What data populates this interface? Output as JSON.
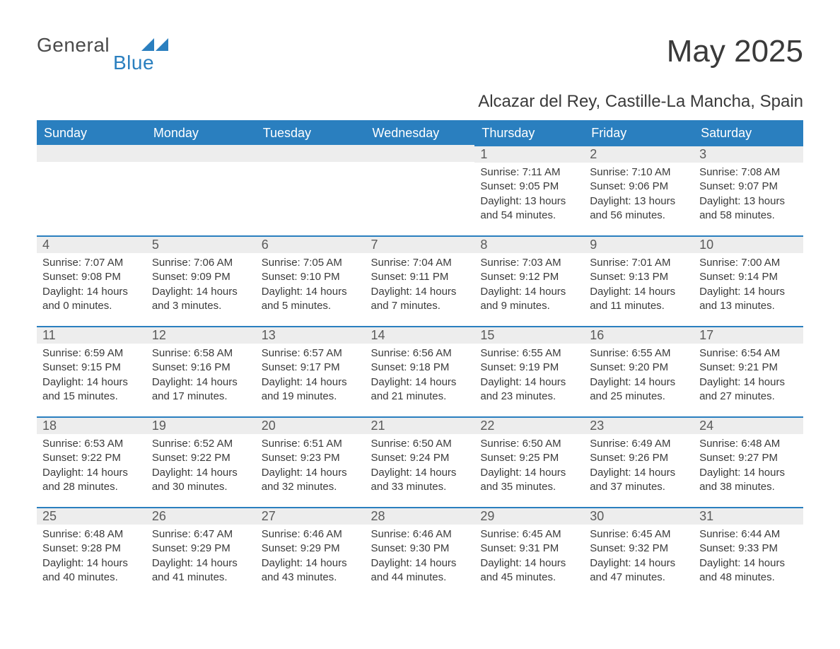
{
  "logo": {
    "text1": "General",
    "text2": "Blue",
    "tri_color": "#2a7fbf"
  },
  "title": "May 2025",
  "subtitle": "Alcazar del Rey, Castille-La Mancha, Spain",
  "colors": {
    "header_bg": "#2a7fbf",
    "header_fg": "#ffffff",
    "daynum_bg": "#ededed",
    "daynum_border": "#2a7fbf",
    "text": "#3a3a3a",
    "page_bg": "#ffffff"
  },
  "weekdays": [
    "Sunday",
    "Monday",
    "Tuesday",
    "Wednesday",
    "Thursday",
    "Friday",
    "Saturday"
  ],
  "weeks": [
    [
      null,
      null,
      null,
      null,
      {
        "n": "1",
        "sr": "7:11 AM",
        "ss": "9:05 PM",
        "dh": "13",
        "dm": "54"
      },
      {
        "n": "2",
        "sr": "7:10 AM",
        "ss": "9:06 PM",
        "dh": "13",
        "dm": "56"
      },
      {
        "n": "3",
        "sr": "7:08 AM",
        "ss": "9:07 PM",
        "dh": "13",
        "dm": "58"
      }
    ],
    [
      {
        "n": "4",
        "sr": "7:07 AM",
        "ss": "9:08 PM",
        "dh": "14",
        "dm": "0"
      },
      {
        "n": "5",
        "sr": "7:06 AM",
        "ss": "9:09 PM",
        "dh": "14",
        "dm": "3"
      },
      {
        "n": "6",
        "sr": "7:05 AM",
        "ss": "9:10 PM",
        "dh": "14",
        "dm": "5"
      },
      {
        "n": "7",
        "sr": "7:04 AM",
        "ss": "9:11 PM",
        "dh": "14",
        "dm": "7"
      },
      {
        "n": "8",
        "sr": "7:03 AM",
        "ss": "9:12 PM",
        "dh": "14",
        "dm": "9"
      },
      {
        "n": "9",
        "sr": "7:01 AM",
        "ss": "9:13 PM",
        "dh": "14",
        "dm": "11"
      },
      {
        "n": "10",
        "sr": "7:00 AM",
        "ss": "9:14 PM",
        "dh": "14",
        "dm": "13"
      }
    ],
    [
      {
        "n": "11",
        "sr": "6:59 AM",
        "ss": "9:15 PM",
        "dh": "14",
        "dm": "15"
      },
      {
        "n": "12",
        "sr": "6:58 AM",
        "ss": "9:16 PM",
        "dh": "14",
        "dm": "17"
      },
      {
        "n": "13",
        "sr": "6:57 AM",
        "ss": "9:17 PM",
        "dh": "14",
        "dm": "19"
      },
      {
        "n": "14",
        "sr": "6:56 AM",
        "ss": "9:18 PM",
        "dh": "14",
        "dm": "21"
      },
      {
        "n": "15",
        "sr": "6:55 AM",
        "ss": "9:19 PM",
        "dh": "14",
        "dm": "23"
      },
      {
        "n": "16",
        "sr": "6:55 AM",
        "ss": "9:20 PM",
        "dh": "14",
        "dm": "25"
      },
      {
        "n": "17",
        "sr": "6:54 AM",
        "ss": "9:21 PM",
        "dh": "14",
        "dm": "27"
      }
    ],
    [
      {
        "n": "18",
        "sr": "6:53 AM",
        "ss": "9:22 PM",
        "dh": "14",
        "dm": "28"
      },
      {
        "n": "19",
        "sr": "6:52 AM",
        "ss": "9:22 PM",
        "dh": "14",
        "dm": "30"
      },
      {
        "n": "20",
        "sr": "6:51 AM",
        "ss": "9:23 PM",
        "dh": "14",
        "dm": "32"
      },
      {
        "n": "21",
        "sr": "6:50 AM",
        "ss": "9:24 PM",
        "dh": "14",
        "dm": "33"
      },
      {
        "n": "22",
        "sr": "6:50 AM",
        "ss": "9:25 PM",
        "dh": "14",
        "dm": "35"
      },
      {
        "n": "23",
        "sr": "6:49 AM",
        "ss": "9:26 PM",
        "dh": "14",
        "dm": "37"
      },
      {
        "n": "24",
        "sr": "6:48 AM",
        "ss": "9:27 PM",
        "dh": "14",
        "dm": "38"
      }
    ],
    [
      {
        "n": "25",
        "sr": "6:48 AM",
        "ss": "9:28 PM",
        "dh": "14",
        "dm": "40"
      },
      {
        "n": "26",
        "sr": "6:47 AM",
        "ss": "9:29 PM",
        "dh": "14",
        "dm": "41"
      },
      {
        "n": "27",
        "sr": "6:46 AM",
        "ss": "9:29 PM",
        "dh": "14",
        "dm": "43"
      },
      {
        "n": "28",
        "sr": "6:46 AM",
        "ss": "9:30 PM",
        "dh": "14",
        "dm": "44"
      },
      {
        "n": "29",
        "sr": "6:45 AM",
        "ss": "9:31 PM",
        "dh": "14",
        "dm": "45"
      },
      {
        "n": "30",
        "sr": "6:45 AM",
        "ss": "9:32 PM",
        "dh": "14",
        "dm": "47"
      },
      {
        "n": "31",
        "sr": "6:44 AM",
        "ss": "9:33 PM",
        "dh": "14",
        "dm": "48"
      }
    ]
  ],
  "labels": {
    "sunrise": "Sunrise: ",
    "sunset": "Sunset: ",
    "daylight1": "Daylight: ",
    "daylight2": " hours and ",
    "daylight3": " minutes."
  }
}
